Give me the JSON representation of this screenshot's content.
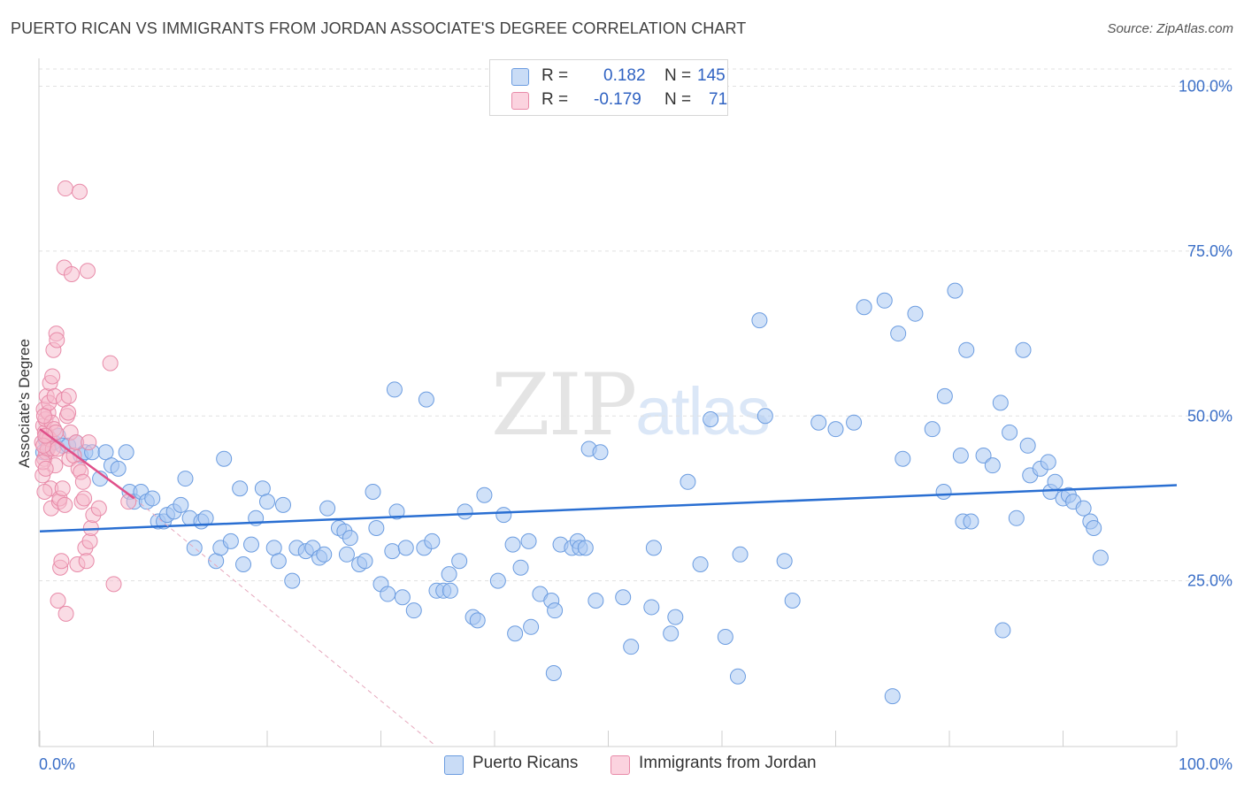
{
  "title": "PUERTO RICAN VS IMMIGRANTS FROM JORDAN ASSOCIATE'S DEGREE CORRELATION CHART",
  "source": "Source: ZipAtlas.com",
  "watermark": {
    "zip": "ZIP",
    "atlas": "atlas"
  },
  "legend": {
    "rows": [
      {
        "r_label": "R =",
        "r_value": "0.182",
        "n_label": "N =",
        "n_value": "145",
        "color": "#a9c8f2"
      },
      {
        "r_label": "R =",
        "r_value": "-0.179",
        "n_label": "N =",
        "n_value": "71",
        "color": "#f6b9cc"
      }
    ],
    "bottom": [
      {
        "label": "Puerto Ricans",
        "color": "#a9c8f2"
      },
      {
        "label": "Immigrants from Jordan",
        "color": "#f6b9cc"
      }
    ]
  },
  "chart_data": {
    "type": "scatter",
    "title": "PUERTO RICAN VS IMMIGRANTS FROM JORDAN ASSOCIATE'S DEGREE CORRELATION CHART",
    "xlabel": "",
    "ylabel": "Associate's Degree",
    "xlim": [
      0,
      100
    ],
    "ylim": [
      0,
      102
    ],
    "x_tick_labels": [
      "0.0%",
      "100.0%"
    ],
    "y_ticks": [
      25,
      50,
      75,
      100
    ],
    "y_tick_labels": [
      "25.0%",
      "50.0%",
      "75.0%",
      "100.0%"
    ],
    "grid": "horizontal dashed",
    "series": [
      {
        "name": "Puerto Ricans",
        "color": "#a9c8f2",
        "stroke": "#6b9ce0",
        "trend": {
          "x": [
            0,
            100
          ],
          "y": [
            32.5,
            39.5
          ],
          "color": "#2a6fd2"
        },
        "points": [
          [
            0.3,
            44.5
          ],
          [
            0.5,
            46.5
          ],
          [
            0.8,
            45.5
          ],
          [
            1.2,
            46
          ],
          [
            1.6,
            47
          ],
          [
            2,
            45.5
          ],
          [
            2.5,
            45.5
          ],
          [
            3.2,
            46
          ],
          [
            3.6,
            44
          ],
          [
            4,
            44.5
          ],
          [
            4.6,
            44.5
          ],
          [
            5.3,
            40.5
          ],
          [
            5.8,
            44.5
          ],
          [
            6.3,
            42.5
          ],
          [
            6.9,
            42
          ],
          [
            7.6,
            44.5
          ],
          [
            7.9,
            38.5
          ],
          [
            8.3,
            37
          ],
          [
            8.9,
            38.5
          ],
          [
            9.4,
            37
          ],
          [
            9.9,
            37.5
          ],
          [
            10.4,
            34
          ],
          [
            10.9,
            34
          ],
          [
            11.2,
            35
          ],
          [
            11.8,
            35.5
          ],
          [
            12.4,
            36.5
          ],
          [
            12.8,
            40.5
          ],
          [
            13.2,
            34.5
          ],
          [
            13.6,
            30
          ],
          [
            14.2,
            34
          ],
          [
            14.6,
            34.5
          ],
          [
            15.5,
            28
          ],
          [
            15.9,
            30
          ],
          [
            16.2,
            43.5
          ],
          [
            16.8,
            31
          ],
          [
            17.6,
            39
          ],
          [
            17.9,
            27.5
          ],
          [
            18.6,
            30.5
          ],
          [
            19,
            34.5
          ],
          [
            19.6,
            39
          ],
          [
            20,
            37
          ],
          [
            20.6,
            30
          ],
          [
            21,
            28
          ],
          [
            21.4,
            36.5
          ],
          [
            22.2,
            25
          ],
          [
            22.6,
            30
          ],
          [
            23.4,
            29.5
          ],
          [
            24,
            30
          ],
          [
            24.6,
            28.5
          ],
          [
            25,
            29
          ],
          [
            25.3,
            36
          ],
          [
            26.3,
            33
          ],
          [
            26.8,
            32.5
          ],
          [
            27,
            29
          ],
          [
            27.3,
            31.5
          ],
          [
            28.1,
            27.5
          ],
          [
            28.6,
            28
          ],
          [
            29.3,
            38.5
          ],
          [
            29.6,
            33
          ],
          [
            30,
            24.5
          ],
          [
            30.6,
            23
          ],
          [
            31,
            29.5
          ],
          [
            31.4,
            35.5
          ],
          [
            31.9,
            22.5
          ],
          [
            32.2,
            30
          ],
          [
            32.9,
            20.5
          ],
          [
            33.8,
            30
          ],
          [
            34.5,
            31
          ],
          [
            34.9,
            23.5
          ],
          [
            35.5,
            23.5
          ],
          [
            36,
            26
          ],
          [
            36.1,
            23.5
          ],
          [
            36.9,
            28
          ],
          [
            37.4,
            35.5
          ],
          [
            38.1,
            19.5
          ],
          [
            38.5,
            19
          ],
          [
            39.1,
            38
          ],
          [
            40.3,
            25
          ],
          [
            40.8,
            35
          ],
          [
            41.6,
            30.5
          ],
          [
            41.8,
            17
          ],
          [
            42.3,
            27
          ],
          [
            43,
            31
          ],
          [
            43.2,
            18
          ],
          [
            44,
            23
          ],
          [
            45,
            22
          ],
          [
            45.3,
            20.5
          ],
          [
            45.2,
            11
          ],
          [
            45.8,
            30.5
          ],
          [
            46.8,
            30
          ],
          [
            47.3,
            31
          ],
          [
            47.5,
            30
          ],
          [
            48,
            30
          ],
          [
            48.3,
            45
          ],
          [
            48.9,
            22
          ],
          [
            49.3,
            44.5
          ],
          [
            51.3,
            22.5
          ],
          [
            52,
            15
          ],
          [
            53.8,
            21
          ],
          [
            54,
            30
          ],
          [
            55.5,
            17
          ],
          [
            55.9,
            19.5
          ],
          [
            57,
            40
          ],
          [
            58.1,
            27.5
          ],
          [
            59,
            49.5
          ],
          [
            60.3,
            16.5
          ],
          [
            61.4,
            10.5
          ],
          [
            61.6,
            29
          ],
          [
            63.3,
            64.5
          ],
          [
            63.8,
            50
          ],
          [
            65.5,
            28
          ],
          [
            66.2,
            22
          ],
          [
            68.5,
            49
          ],
          [
            70,
            48
          ],
          [
            71.6,
            49
          ],
          [
            72.5,
            66.5
          ],
          [
            74.3,
            67.5
          ],
          [
            75,
            7.5
          ],
          [
            75.9,
            43.5
          ],
          [
            75.5,
            62.5
          ],
          [
            77,
            65.5
          ],
          [
            78.5,
            48
          ],
          [
            79.5,
            38.5
          ],
          [
            79.6,
            53
          ],
          [
            80.5,
            69
          ],
          [
            81,
            44
          ],
          [
            81.2,
            34
          ],
          [
            81.5,
            60
          ],
          [
            81.9,
            34
          ],
          [
            83,
            44
          ],
          [
            83.8,
            42.5
          ],
          [
            84.5,
            52
          ],
          [
            84.7,
            17.5
          ],
          [
            85.3,
            47.5
          ],
          [
            85.9,
            34.5
          ],
          [
            86.5,
            60
          ],
          [
            86.9,
            45.5
          ],
          [
            87.1,
            41
          ],
          [
            88,
            42
          ],
          [
            88.7,
            43
          ],
          [
            88.9,
            38.5
          ],
          [
            89.3,
            40
          ],
          [
            90,
            37.5
          ],
          [
            90.5,
            38
          ],
          [
            90.9,
            37
          ],
          [
            91.8,
            36
          ],
          [
            92.4,
            34
          ],
          [
            92.7,
            33
          ],
          [
            93.3,
            28.5
          ],
          [
            31.2,
            54
          ],
          [
            34,
            52.5
          ]
        ]
      },
      {
        "name": "Immigrants from Jordan",
        "color": "#f6b9cc",
        "stroke": "#e88aa8",
        "trend": {
          "x": [
            0,
            8.3
          ],
          "y": [
            48,
            37.5
          ],
          "color": "#e0508a",
          "dashed_extension_to": [
            34.8,
            0
          ]
        },
        "points": [
          [
            0.2,
            46
          ],
          [
            0.3,
            48.5
          ],
          [
            0.35,
            51
          ],
          [
            0.4,
            43.5
          ],
          [
            0.45,
            47.5
          ],
          [
            0.5,
            49.5
          ],
          [
            0.55,
            44.5
          ],
          [
            0.6,
            53
          ],
          [
            0.65,
            47
          ],
          [
            0.7,
            45
          ],
          [
            0.75,
            50.5
          ],
          [
            0.8,
            52
          ],
          [
            0.85,
            46.5
          ],
          [
            0.9,
            55
          ],
          [
            0.95,
            39
          ],
          [
            1,
            36
          ],
          [
            1.05,
            49
          ],
          [
            1.1,
            56
          ],
          [
            1.15,
            45
          ],
          [
            1.2,
            60
          ],
          [
            1.25,
            48
          ],
          [
            1.3,
            53
          ],
          [
            1.35,
            42.5
          ],
          [
            1.4,
            47.5
          ],
          [
            1.45,
            62.5
          ],
          [
            1.5,
            61.5
          ],
          [
            1.55,
            45
          ],
          [
            1.6,
            22
          ],
          [
            1.7,
            37
          ],
          [
            1.75,
            37.5
          ],
          [
            1.8,
            27
          ],
          [
            1.9,
            28
          ],
          [
            2,
            39
          ],
          [
            2.1,
            52.5
          ],
          [
            2.15,
            72.5
          ],
          [
            2.2,
            36.5
          ],
          [
            2.25,
            84.5
          ],
          [
            2.3,
            20
          ],
          [
            2.4,
            50
          ],
          [
            2.5,
            50.5
          ],
          [
            2.55,
            53
          ],
          [
            2.6,
            43.5
          ],
          [
            2.7,
            47.5
          ],
          [
            2.8,
            71.5
          ],
          [
            3,
            44
          ],
          [
            3.2,
            46
          ],
          [
            3.3,
            27.5
          ],
          [
            3.4,
            42
          ],
          [
            3.5,
            84
          ],
          [
            3.6,
            41.5
          ],
          [
            3.7,
            37
          ],
          [
            3.8,
            40
          ],
          [
            3.9,
            37.5
          ],
          [
            4,
            30
          ],
          [
            4.1,
            28
          ],
          [
            4.2,
            72
          ],
          [
            4.3,
            46
          ],
          [
            4.4,
            31
          ],
          [
            4.5,
            33
          ],
          [
            4.7,
            35
          ],
          [
            5.2,
            36
          ],
          [
            6.2,
            58
          ],
          [
            6.5,
            24.5
          ],
          [
            7.8,
            37
          ],
          [
            0.25,
            41
          ],
          [
            0.28,
            43
          ],
          [
            0.32,
            45.5
          ],
          [
            0.38,
            50
          ],
          [
            0.42,
            38.5
          ],
          [
            0.48,
            47
          ],
          [
            0.52,
            42
          ]
        ]
      }
    ]
  }
}
